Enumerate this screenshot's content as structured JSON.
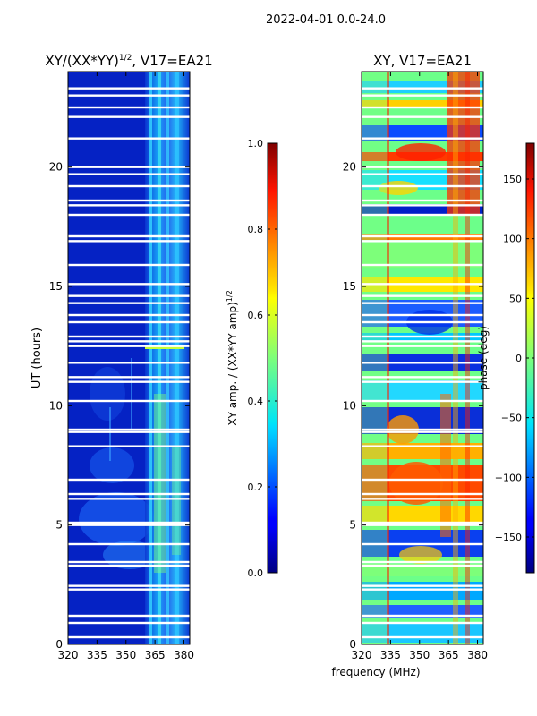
{
  "suptitle": "2022-04-01 0.0-24.0",
  "chart_data": [
    {
      "type": "heatmap",
      "title": "XY/(XX*YY)^1/2, V17=EA21",
      "title_main": "XY/(XX*YY)",
      "title_sup": "1/2",
      "title_tail": ", V17=EA21",
      "ylabel": "UT (hours)",
      "xlabel": "",
      "xlim": [
        320,
        383
      ],
      "ylim": [
        0,
        24
      ],
      "xticks": [
        320,
        335,
        350,
        365,
        380
      ],
      "yticks": [
        0,
        5,
        10,
        15,
        20
      ],
      "colorbar": {
        "label": "XY amp. / (XX*YY amp)^1/2",
        "label_main": "XY amp. / (XX*YY amp)",
        "label_sup": "1/2",
        "range": [
          0.0,
          1.0
        ],
        "ticks": [
          0.0,
          0.2,
          0.4,
          0.6,
          0.8,
          1.0
        ],
        "tick_labels": [
          "0.0",
          "0.2",
          "0.4",
          "0.6",
          "0.8",
          "1.0"
        ],
        "colormap": "jet"
      }
    },
    {
      "type": "heatmap",
      "title": "XY, V17=EA21",
      "ylabel": "",
      "xlabel": "frequency (MHz)",
      "xlim": [
        320,
        383
      ],
      "ylim": [
        0,
        24
      ],
      "xticks": [
        320,
        335,
        350,
        365,
        380
      ],
      "yticks": [
        0,
        5,
        10,
        15,
        20
      ],
      "colorbar": {
        "label": "phase (deg)",
        "range": [
          -180,
          180
        ],
        "ticks": [
          -150,
          -100,
          -50,
          0,
          50,
          100,
          150
        ],
        "tick_labels": [
          "−150",
          "−100",
          "−50",
          "0",
          "50",
          "100",
          "150"
        ],
        "colormap": "jet"
      }
    }
  ],
  "flagged_hours": [
    0.3,
    0.9,
    1.2,
    2.3,
    2.45,
    3.3,
    3.45,
    4.2,
    5.0,
    5.1,
    6.1,
    6.3,
    6.9,
    8.3,
    8.9,
    9.0,
    10.2,
    11.0,
    11.2,
    11.8,
    12.5,
    12.7,
    12.9,
    13.5,
    13.8,
    14.3,
    14.6,
    15.1,
    15.9,
    16.9,
    17.1,
    18.0,
    18.4,
    18.6,
    19.2,
    19.7,
    20.0,
    21.2,
    22.1,
    22.5,
    23.0,
    23.3
  ]
}
